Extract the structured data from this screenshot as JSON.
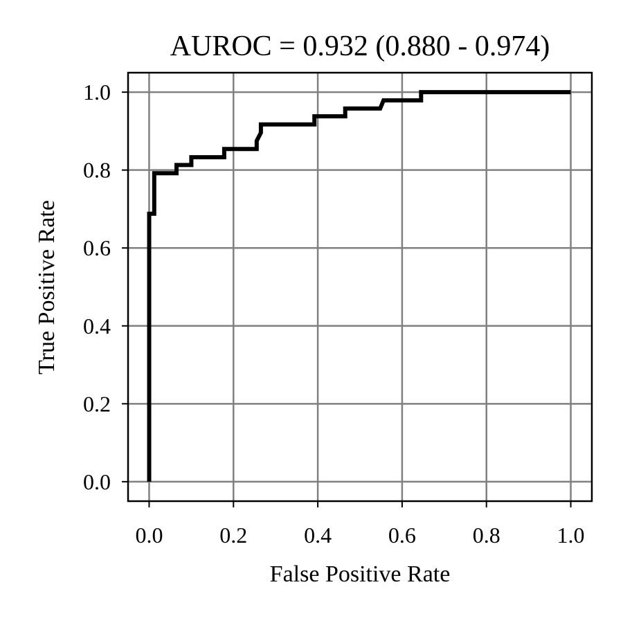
{
  "chart_data": {
    "type": "line",
    "title": "AUROC = 0.932 (0.880 - 0.974)",
    "xlabel": "False Positive Rate",
    "ylabel": "True Positive Rate",
    "xlim": [
      -0.05,
      1.05
    ],
    "ylim": [
      -0.05,
      1.05
    ],
    "grid": true,
    "x_ticks": [
      0.0,
      0.2,
      0.4,
      0.6,
      0.8,
      1.0
    ],
    "x_tick_labels": [
      "0.0",
      "0.2",
      "0.4",
      "0.6",
      "0.8",
      "1.0"
    ],
    "y_ticks": [
      0.0,
      0.2,
      0.4,
      0.6,
      0.8,
      1.0
    ],
    "y_tick_labels": [
      "0.0",
      "0.2",
      "0.4",
      "0.6",
      "0.8",
      "1.0"
    ],
    "line_color": "#000000",
    "grid_color": "#808080",
    "series": [
      {
        "x": [
          0.0,
          0.0,
          0.0,
          0.012,
          0.012,
          0.065,
          0.065,
          0.1,
          0.1,
          0.178,
          0.178,
          0.255,
          0.255,
          0.265,
          0.265,
          0.392,
          0.392,
          0.465,
          0.465,
          0.548,
          0.556,
          0.645,
          0.645,
          1.0
        ],
        "y": [
          0.0,
          0.688,
          0.688,
          0.688,
          0.792,
          0.792,
          0.813,
          0.813,
          0.833,
          0.833,
          0.854,
          0.854,
          0.875,
          0.896,
          0.917,
          0.917,
          0.938,
          0.938,
          0.958,
          0.958,
          0.979,
          0.979,
          1.0,
          1.0
        ]
      }
    ]
  }
}
